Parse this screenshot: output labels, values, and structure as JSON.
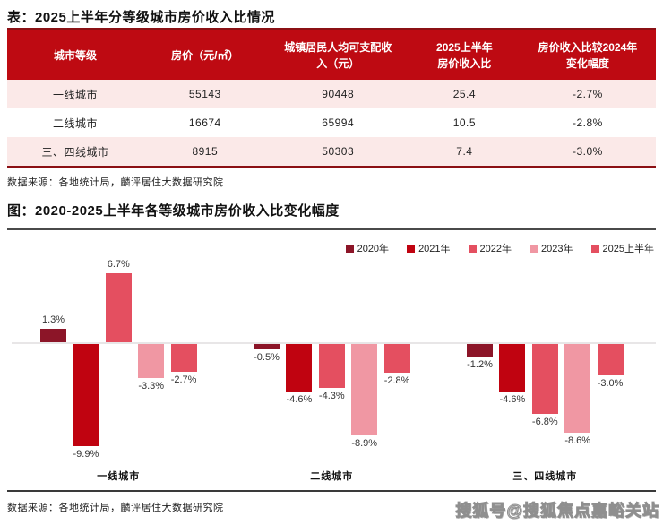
{
  "table_section": {
    "title": "表：2025上半年分等级城市房价收入比情况",
    "columns": [
      "城市等级",
      "房价（元/㎡）",
      "城镇居民人均可支配收\n入（元）",
      "2025上半年\n房价收入比",
      "房价收入比较2024年\n变化幅度"
    ],
    "rows": [
      [
        "一线城市",
        "55143",
        "90448",
        "25.4",
        "-2.7%"
      ],
      [
        "二线城市",
        "16674",
        "65994",
        "10.5",
        "-2.8%"
      ],
      [
        "三、四线城市",
        "8915",
        "50303",
        "7.4",
        "-3.0%"
      ]
    ],
    "source": "数据来源：各地统计局，麟评居住大数据研究院"
  },
  "chart_section": {
    "title": "图：2020-2025上半年各等级城市房价收入比变化幅度",
    "source": "数据来源：各地统计局，麟评居住大数据研究院"
  },
  "chart_data": {
    "type": "bar",
    "title": "图：2020-2025上半年各等级城市房价收入比变化幅度",
    "categories": [
      "一线城市",
      "二线城市",
      "三、四线城市"
    ],
    "series": [
      {
        "name": "2020年",
        "color": "#8C1528",
        "values": [
          1.3,
          -0.5,
          -1.2
        ]
      },
      {
        "name": "2021年",
        "color": "#C00310",
        "values": [
          -9.9,
          -4.6,
          -4.6
        ]
      },
      {
        "name": "2022年",
        "color": "#E44F60",
        "values": [
          6.7,
          -4.3,
          -6.8
        ]
      },
      {
        "name": "2023年",
        "color": "#F097A3",
        "values": [
          -3.3,
          -8.9,
          -8.6
        ]
      },
      {
        "name": "2025上半年",
        "color": "#E44F60",
        "values": [
          -2.7,
          -2.8,
          -3.0
        ]
      }
    ],
    "unit": "%",
    "ylim": [
      -10.5,
      7.5
    ],
    "grid": false,
    "legend_position": "top-right",
    "data_labels": true
  },
  "watermark": "搜狐号@搜狐焦点嘉峪关站",
  "colors": {
    "header_red": "#BE0A12",
    "dark_red": "#8B1014",
    "row_pink": "#FBE9E8",
    "axis_gray": "#E8E6E7",
    "divider_gray": "#4A4A4A",
    "footer_line": "#3A3A3A",
    "text": "#1A1A1A"
  }
}
